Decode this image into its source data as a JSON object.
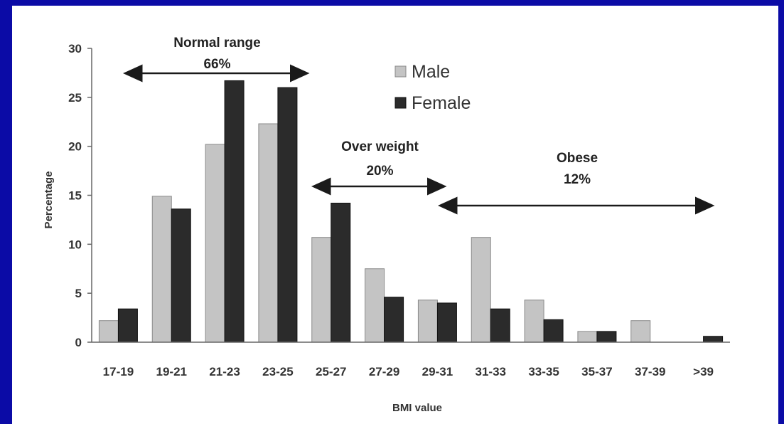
{
  "colors": {
    "frame": "#0b0ba6",
    "background": "#ffffff",
    "male": "#c4c4c4",
    "female": "#2b2b2b",
    "axis": "#666666",
    "arrow": "#1a1a1a"
  },
  "chart_data": {
    "type": "bar",
    "xlabel": "BMI value",
    "ylabel": "Percentage",
    "ylim": [
      0,
      30
    ],
    "yticks": [
      0,
      5,
      10,
      15,
      20,
      25,
      30
    ],
    "grid": false,
    "legend_position": "top-right",
    "categories": [
      "17-19",
      "19-21",
      "21-23",
      "23-25",
      "25-27",
      "27-29",
      "29-31",
      "31-33",
      "33-35",
      "35-37",
      "37-39",
      ">39"
    ],
    "series": [
      {
        "name": "Male",
        "values": [
          2.2,
          14.9,
          20.2,
          22.3,
          10.7,
          7.5,
          4.3,
          10.7,
          4.3,
          1.1,
          2.2,
          0
        ]
      },
      {
        "name": "Female",
        "values": [
          3.4,
          13.6,
          26.7,
          26.0,
          14.2,
          4.6,
          4.0,
          3.4,
          2.3,
          1.1,
          0,
          0.6
        ]
      }
    ],
    "annotations": [
      {
        "label": "Normal range",
        "value": "66%",
        "from_category": 0,
        "to_category": 3
      },
      {
        "label": "Over weight",
        "value": "20%",
        "from_category": 4,
        "to_category": 6
      },
      {
        "label": "Obese",
        "value": "12%",
        "from_category": 6,
        "to_category": 11
      }
    ]
  }
}
